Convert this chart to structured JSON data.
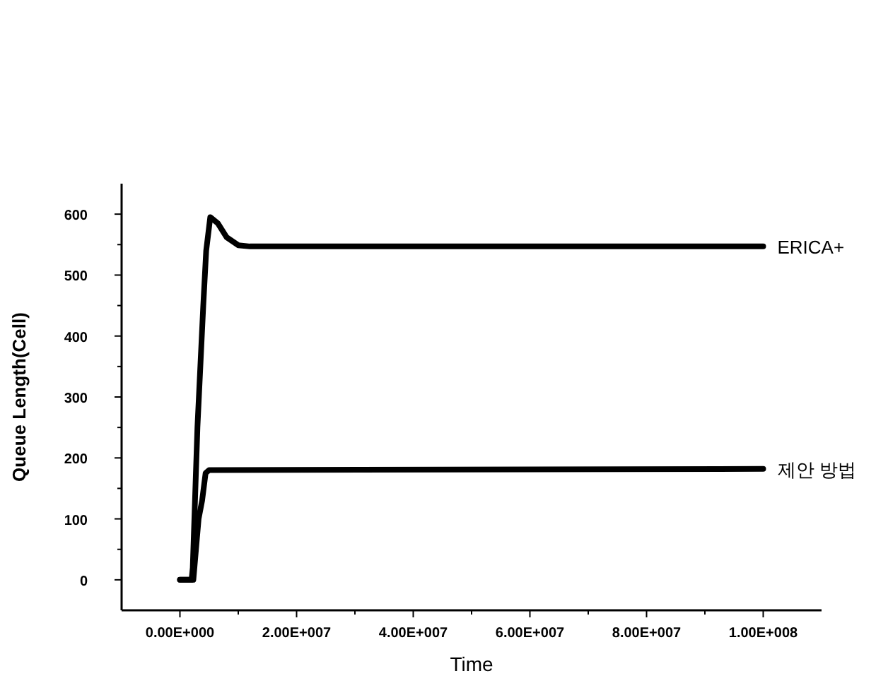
{
  "chart_data": {
    "type": "line",
    "xlabel": "Time",
    "ylabel": "Queue Length(Cell)",
    "xlim": [
      -10000000,
      110000000
    ],
    "ylim": [
      -50,
      650
    ],
    "xticks": [
      {
        "value": 0,
        "label": "0.00E+000"
      },
      {
        "value": 10000000,
        "label": null
      },
      {
        "value": 20000000,
        "label": "2.00E+007"
      },
      {
        "value": 30000000,
        "label": null
      },
      {
        "value": 40000000,
        "label": "4.00E+007"
      },
      {
        "value": 50000000,
        "label": null
      },
      {
        "value": 60000000,
        "label": "6.00E+007"
      },
      {
        "value": 70000000,
        "label": null
      },
      {
        "value": 80000000,
        "label": "8.00E+007"
      },
      {
        "value": 90000000,
        "label": null
      },
      {
        "value": 100000000,
        "label": "1.00E+008"
      }
    ],
    "yticks": [
      0,
      {
        "value": 50,
        "label": null
      },
      100,
      {
        "value": 150,
        "label": null
      },
      200,
      {
        "value": 250,
        "label": null
      },
      300,
      {
        "value": 350,
        "label": null
      },
      400,
      {
        "value": 450,
        "label": null
      },
      500,
      {
        "value": 550,
        "label": null
      },
      600
    ],
    "grid": false,
    "legend": false,
    "marker": "none",
    "line_style": "solid",
    "series": [
      {
        "name": "ERICA+",
        "color": "#000000",
        "x": [
          0,
          2000000,
          2200000,
          3000000,
          4000000,
          4500000,
          5200000,
          6500000,
          8000000,
          10000000,
          12000000,
          100000000
        ],
        "values": [
          0,
          0,
          20,
          250,
          450,
          540,
          595,
          585,
          562,
          549,
          547,
          547
        ]
      },
      {
        "name": "제안 방법",
        "color": "#000000",
        "x": [
          0,
          2000000,
          2300000,
          3200000,
          3800000,
          4400000,
          5000000,
          100000000
        ],
        "values": [
          0,
          0,
          0,
          100,
          130,
          175,
          180,
          182
        ]
      }
    ]
  }
}
